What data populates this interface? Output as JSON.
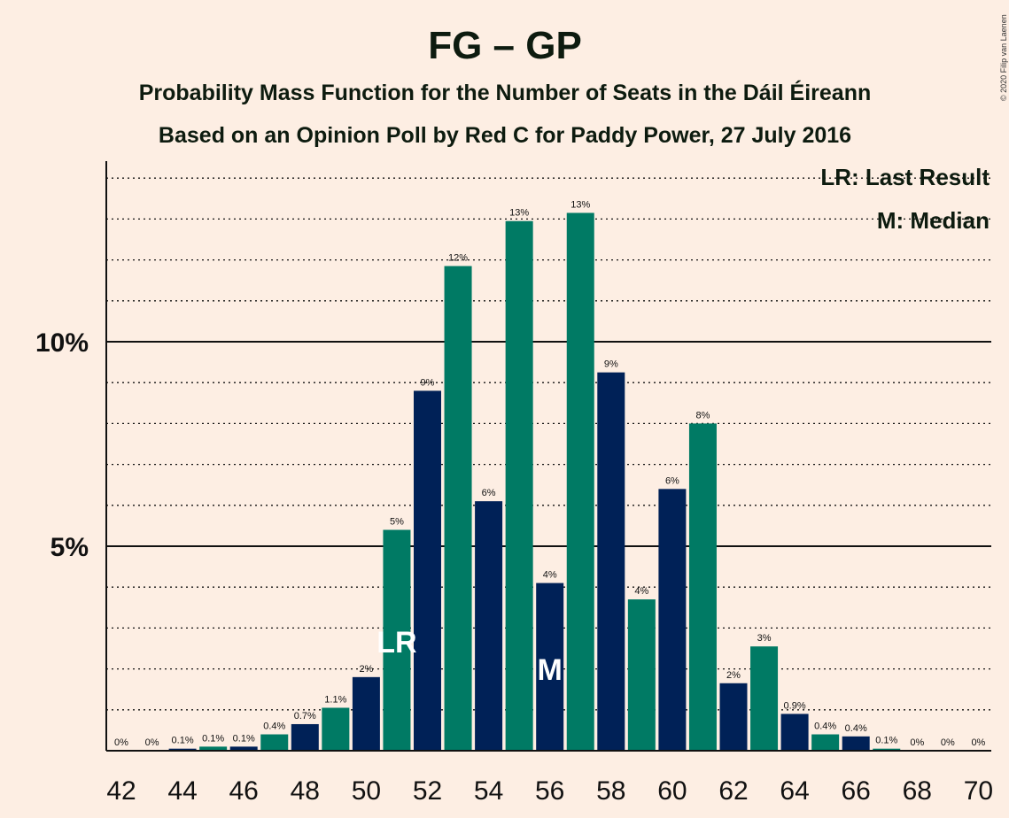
{
  "copyright": "© 2020 Filip van Laenen",
  "chart_data": {
    "type": "bar",
    "title": "FG – GP",
    "subtitle": "Probability Mass Function for the Number of Seats in the Dáil Éireann",
    "subtitle2": "Based on an Opinion Poll by Red C for Paddy Power, 27 July 2016",
    "xlabel": "",
    "ylabel": "",
    "ylim": [
      0,
      14.3
    ],
    "yticks": [
      {
        "value": 5,
        "label": "5%"
      },
      {
        "value": 10,
        "label": "10%"
      }
    ],
    "grid": "dotted every 1%, solid at 5% and 10%",
    "legend": {
      "position": "top-right",
      "entries": [
        "LR: Last Result",
        "M: Median"
      ]
    },
    "markers": {
      "last_result": {
        "x": 51,
        "label": "LR"
      },
      "median": {
        "x": 56,
        "label": "M"
      }
    },
    "colors": {
      "navy": "#002157",
      "green": "#007A64"
    },
    "x": [
      42,
      43,
      44,
      45,
      46,
      47,
      48,
      49,
      50,
      51,
      52,
      53,
      54,
      55,
      56,
      57,
      58,
      59,
      60,
      61,
      62,
      63,
      64,
      65,
      66,
      67,
      68,
      69,
      70
    ],
    "values": [
      0,
      0,
      0.05,
      0.1,
      0.1,
      0.4,
      0.65,
      1.05,
      1.8,
      5.4,
      8.8,
      11.85,
      6.1,
      12.95,
      4.1,
      13.15,
      9.25,
      3.7,
      6.4,
      8.0,
      1.65,
      2.55,
      0.9,
      0.4,
      0.35,
      0.05,
      0,
      0,
      0
    ],
    "labels": [
      "0%",
      "0%",
      "0.1%",
      "0.1%",
      "0.1%",
      "0.4%",
      "0.7%",
      "1.1%",
      "2%",
      "5%",
      "9%",
      "12%",
      "6%",
      "13%",
      "4%",
      "13%",
      "9%",
      "4%",
      "6%",
      "8%",
      "2%",
      "3%",
      "0.9%",
      "0.4%",
      "0.4%",
      "0.1%",
      "0%",
      "0%",
      "0%"
    ],
    "xtick_labels": [
      "42",
      "44",
      "46",
      "48",
      "50",
      "52",
      "54",
      "56",
      "58",
      "60",
      "62",
      "64",
      "66",
      "68",
      "70"
    ]
  }
}
